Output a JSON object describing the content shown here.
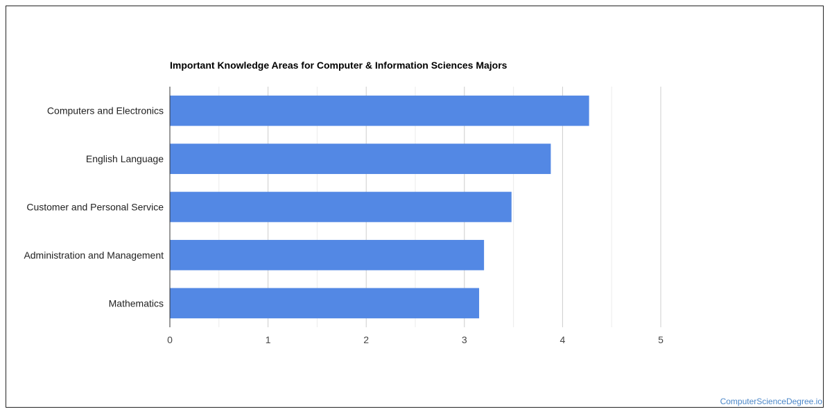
{
  "chart_data": {
    "type": "bar",
    "orientation": "horizontal",
    "title": "Important Knowledge Areas for Computer & Information Sciences Majors",
    "categories": [
      "Computers and Electronics",
      "English Language",
      "Customer and Personal Service",
      "Administration and Management",
      "Mathematics"
    ],
    "values": [
      4.27,
      3.88,
      3.48,
      3.2,
      3.15
    ],
    "xlim": [
      0,
      5
    ],
    "xticks": [
      0,
      1,
      2,
      3,
      4,
      5
    ],
    "grid": true,
    "bar_color": "#5388e4"
  },
  "watermark": "ComputerScienceDegree.io"
}
